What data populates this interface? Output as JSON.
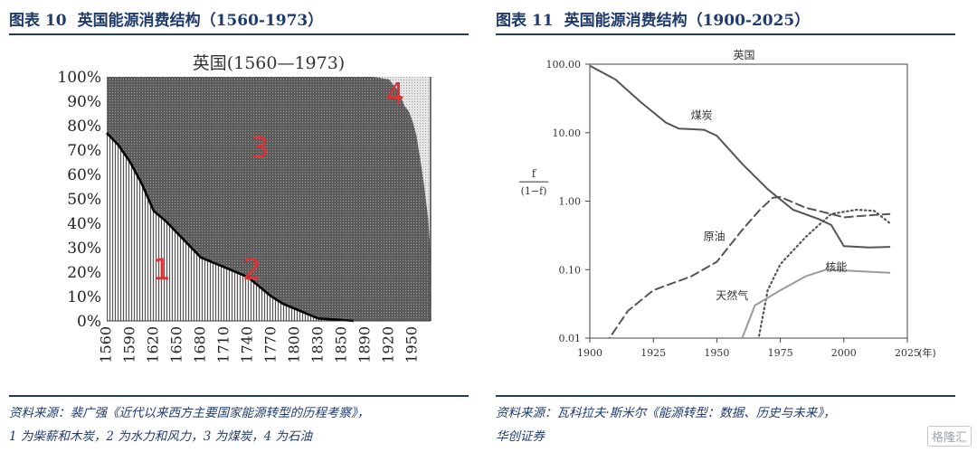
{
  "left": {
    "fig_label": "图表 10",
    "fig_title": "英国能源消费结构（1560-1973）",
    "source_line1": "资料来源：裴广强《近代以来西方主要国家能源转型的历程考察》，",
    "source_line2": "1 为柴薪和木炭，2 为水力和风力，3 为煤炭，4 为石油"
  },
  "right": {
    "fig_label": "图表 11",
    "fig_title": "英国能源消费结构（1900-2025）",
    "source_line1": "资料来源：瓦科拉夫·斯米尔《能源转型：数据、历史与未来》，",
    "source_line2": "华创证券"
  },
  "watermark": "格隆汇",
  "chart_data": [
    {
      "type": "area",
      "title": "英国(1560—1973)",
      "xlabel": "",
      "ylabel": "",
      "x_ticks": [
        "1560",
        "1590",
        "1620",
        "1650",
        "1680",
        "1710",
        "1740",
        "1770",
        "1800",
        "1830",
        "1850",
        "1890",
        "1920",
        "1950"
      ],
      "y_ticks": [
        "0%",
        "10%",
        "20%",
        "30%",
        "40%",
        "50%",
        "60%",
        "70%",
        "80%",
        "90%",
        "100%"
      ],
      "ylim": [
        0,
        100
      ],
      "colors": {
        "wood": "#ececec",
        "coal": "#5c5c5c",
        "oil": "#e6e6e6",
        "divider": "#000000"
      },
      "series": [
        {
          "name": "1",
          "meaning": "柴薪和木炭",
          "x": [
            1560,
            1575,
            1590,
            1605,
            1620,
            1635,
            1650,
            1665,
            1680,
            1695,
            1710,
            1725,
            1740,
            1755,
            1770,
            1785,
            1800,
            1815,
            1830,
            1845,
            1860,
            1870
          ],
          "values": [
            77,
            72,
            65,
            56,
            45,
            41,
            36,
            31,
            26,
            24,
            22,
            20,
            18,
            14,
            10,
            7,
            5,
            3,
            1,
            0.5,
            0.2,
            0
          ]
        },
        {
          "name": "2",
          "meaning": "水力和风力",
          "cum_upper": "tiny band above series 1"
        },
        {
          "name": "3",
          "meaning": "煤炭",
          "x": [
            1560,
            1900,
            1910,
            1920,
            1925,
            1930,
            1935,
            1940,
            1945,
            1950,
            1955,
            1960,
            1965,
            1970,
            1973
          ],
          "top": [
            100,
            100,
            99.5,
            99,
            97,
            95,
            92,
            88,
            86,
            82,
            76,
            66,
            55,
            42,
            28
          ]
        },
        {
          "name": "4",
          "meaning": "石油",
          "from_series_3_top_to": 100
        }
      ],
      "labels": [
        {
          "text": "1",
          "x": 1630,
          "y": 17
        },
        {
          "text": "2",
          "x": 1745,
          "y": 17
        },
        {
          "text": "3",
          "x": 1755,
          "y": 67
        },
        {
          "text": "4",
          "x": 1928,
          "y": 89
        }
      ]
    },
    {
      "type": "line",
      "title": "英国",
      "ylabel_top": "f",
      "ylabel_bottom": "(1−f)",
      "xlabel_unit": "(年)",
      "log_scale": true,
      "xlim": [
        1900,
        2025
      ],
      "ylim": [
        0.01,
        100
      ],
      "x_ticks": [
        "1900",
        "1925",
        "1950",
        "1975",
        "2000",
        "2025"
      ],
      "y_ticks": [
        "0.01",
        "0.10",
        "1.00",
        "10.00",
        "100.00"
      ],
      "series": [
        {
          "name": "煤炭",
          "style": "solid",
          "color": "#555555",
          "points": [
            [
              1900,
              95
            ],
            [
              1910,
              60
            ],
            [
              1920,
              28
            ],
            [
              1930,
              14
            ],
            [
              1935,
              11.5
            ],
            [
              1945,
              11
            ],
            [
              1950,
              9
            ],
            [
              1960,
              3.5
            ],
            [
              1970,
              1.5
            ],
            [
              1980,
              0.75
            ],
            [
              1990,
              0.55
            ],
            [
              1995,
              0.45
            ],
            [
              2000,
              0.22
            ],
            [
              2010,
              0.21
            ],
            [
              2018,
              0.215
            ]
          ]
        },
        {
          "name": "原油",
          "style": "dashed",
          "color": "#555555",
          "points": [
            [
              1906,
              0.008
            ],
            [
              1915,
              0.025
            ],
            [
              1925,
              0.05
            ],
            [
              1940,
              0.08
            ],
            [
              1950,
              0.13
            ],
            [
              1960,
              0.38
            ],
            [
              1967,
              0.75
            ],
            [
              1972,
              1.12
            ],
            [
              1975,
              1.15
            ],
            [
              1985,
              0.8
            ],
            [
              1995,
              0.65
            ],
            [
              2000,
              0.58
            ],
            [
              2010,
              0.62
            ],
            [
              2018,
              0.65
            ]
          ]
        },
        {
          "name": "天然气",
          "style": "dotted",
          "color": "#555555",
          "points": [
            [
              1966,
              0.008
            ],
            [
              1970,
              0.05
            ],
            [
              1975,
              0.12
            ],
            [
              1985,
              0.3
            ],
            [
              1995,
              0.65
            ],
            [
              2005,
              0.75
            ],
            [
              2012,
              0.72
            ],
            [
              2018,
              0.48
            ]
          ]
        },
        {
          "name": "核能",
          "style": "solid",
          "color": "#9a9a9a",
          "points": [
            [
              1960,
              0.01
            ],
            [
              1965,
              0.03
            ],
            [
              1975,
              0.05
            ],
            [
              1985,
              0.08
            ],
            [
              1993,
              0.1
            ],
            [
              2005,
              0.095
            ],
            [
              2018,
              0.09
            ]
          ]
        }
      ],
      "labels": [
        {
          "text": "煤炭",
          "x": 1944,
          "y": 16
        },
        {
          "text": "原油",
          "x": 1949,
          "y": 0.27
        },
        {
          "text": "天然气",
          "x": 1956,
          "y": 0.037
        },
        {
          "text": "核能",
          "x": 1997,
          "y": 0.096
        }
      ]
    }
  ]
}
